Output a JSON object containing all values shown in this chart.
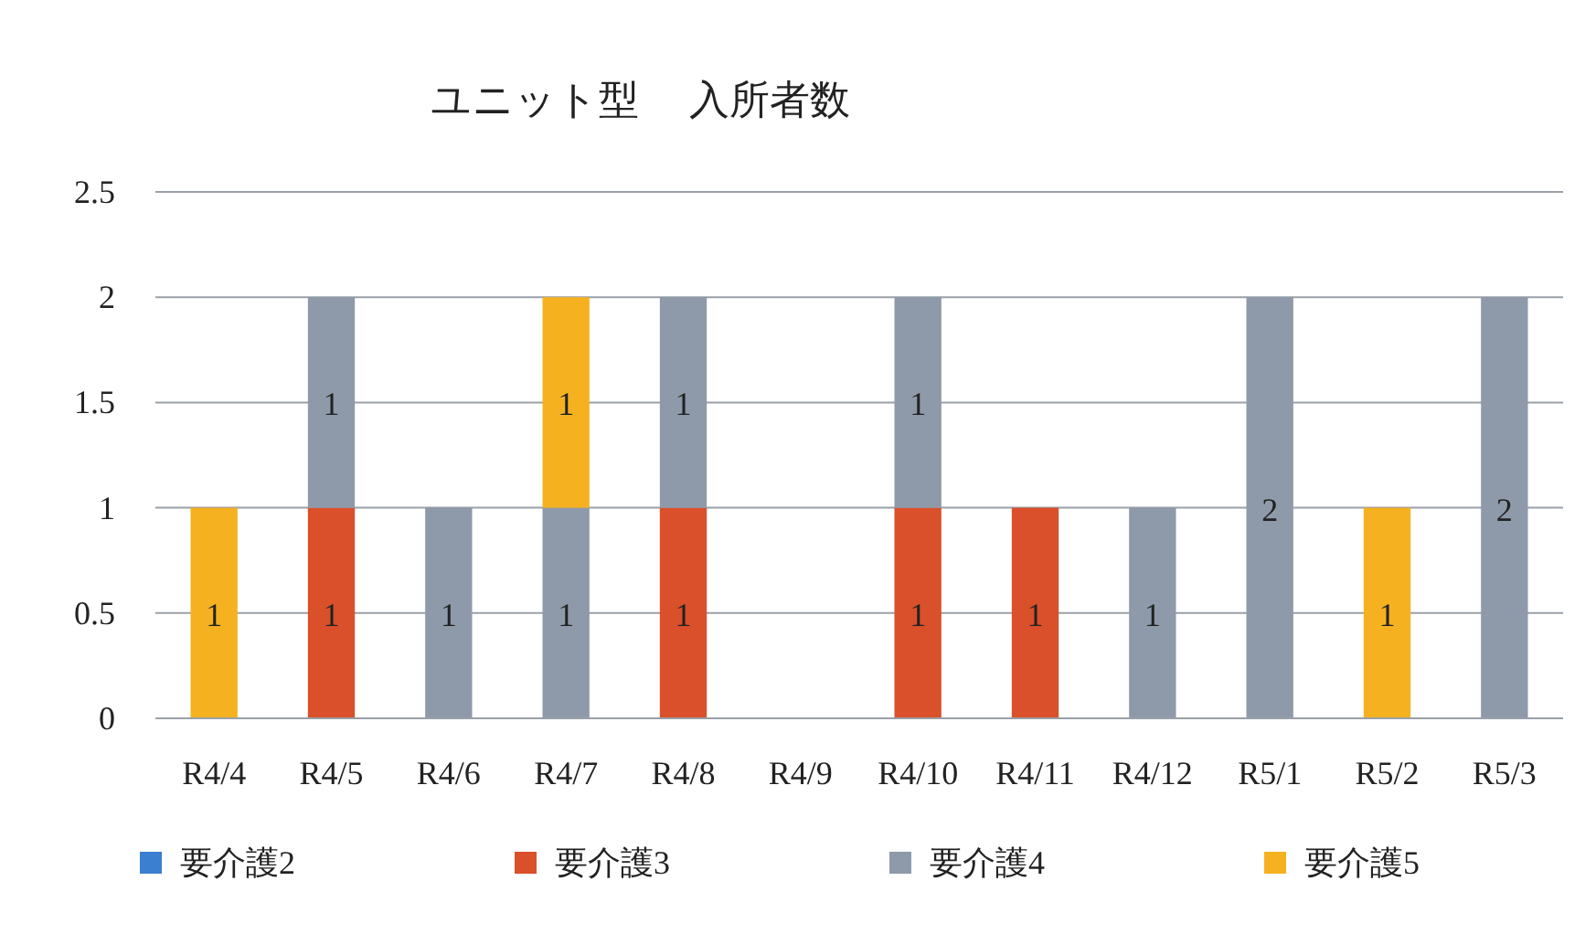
{
  "chart_data": {
    "type": "bar",
    "title": "ユニット型　 入所者数",
    "stacked": true,
    "categories": [
      "R4/4",
      "R4/5",
      "R4/6",
      "R4/7",
      "R4/8",
      "R4/9",
      "R4/10",
      "R4/11",
      "R4/12",
      "R5/1",
      "R5/2",
      "R5/3"
    ],
    "series": [
      {
        "name": "要介護2",
        "color": "#3a7fd0",
        "values": [
          null,
          null,
          null,
          null,
          null,
          null,
          null,
          null,
          null,
          null,
          null,
          null
        ]
      },
      {
        "name": "要介護3",
        "color": "#d9502a",
        "values": [
          null,
          1,
          null,
          null,
          1,
          null,
          1,
          1,
          null,
          null,
          null,
          null
        ]
      },
      {
        "name": "要介護4",
        "color": "#8e9aaa",
        "values": [
          null,
          1,
          1,
          1,
          1,
          null,
          1,
          null,
          1,
          2,
          null,
          2
        ]
      },
      {
        "name": "要介護5",
        "color": "#f5b120",
        "values": [
          1,
          null,
          null,
          1,
          null,
          null,
          null,
          null,
          null,
          null,
          1,
          null
        ]
      }
    ],
    "ylim": [
      0,
      2.5
    ],
    "yticks": [
      0,
      0.5,
      1,
      1.5,
      2,
      2.5
    ],
    "grid": "y",
    "legend": "bottom",
    "data_labels": true
  }
}
